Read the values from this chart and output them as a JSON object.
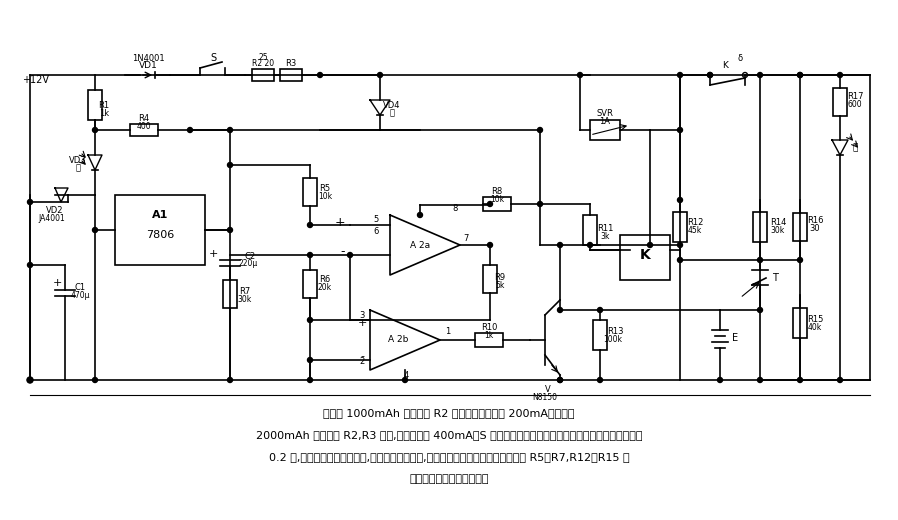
{
  "bg_color": "#ffffff",
  "fig_width": 8.98,
  "fig_height": 5.2,
  "dpi": 100,
  "title": "",
  "description_line1": "标准型 1000mAh 电池组经 R2 充电，充电电流为 200mA。加强型",
  "description_line2": "2000mAh 电池组经 R2,R3 充电,充电电流为 400mA。S 为充电电流选择开关。放电电流也设计为电池容量的",
  "description_line3": "0.2 倍,电池组充电五、六次后,对电池组放电一次,可充分地利用电池容量。电路中的 R5～R7,R12～R15 均",
  "description_line4": "采用精度高的金属膜电阻。"
}
